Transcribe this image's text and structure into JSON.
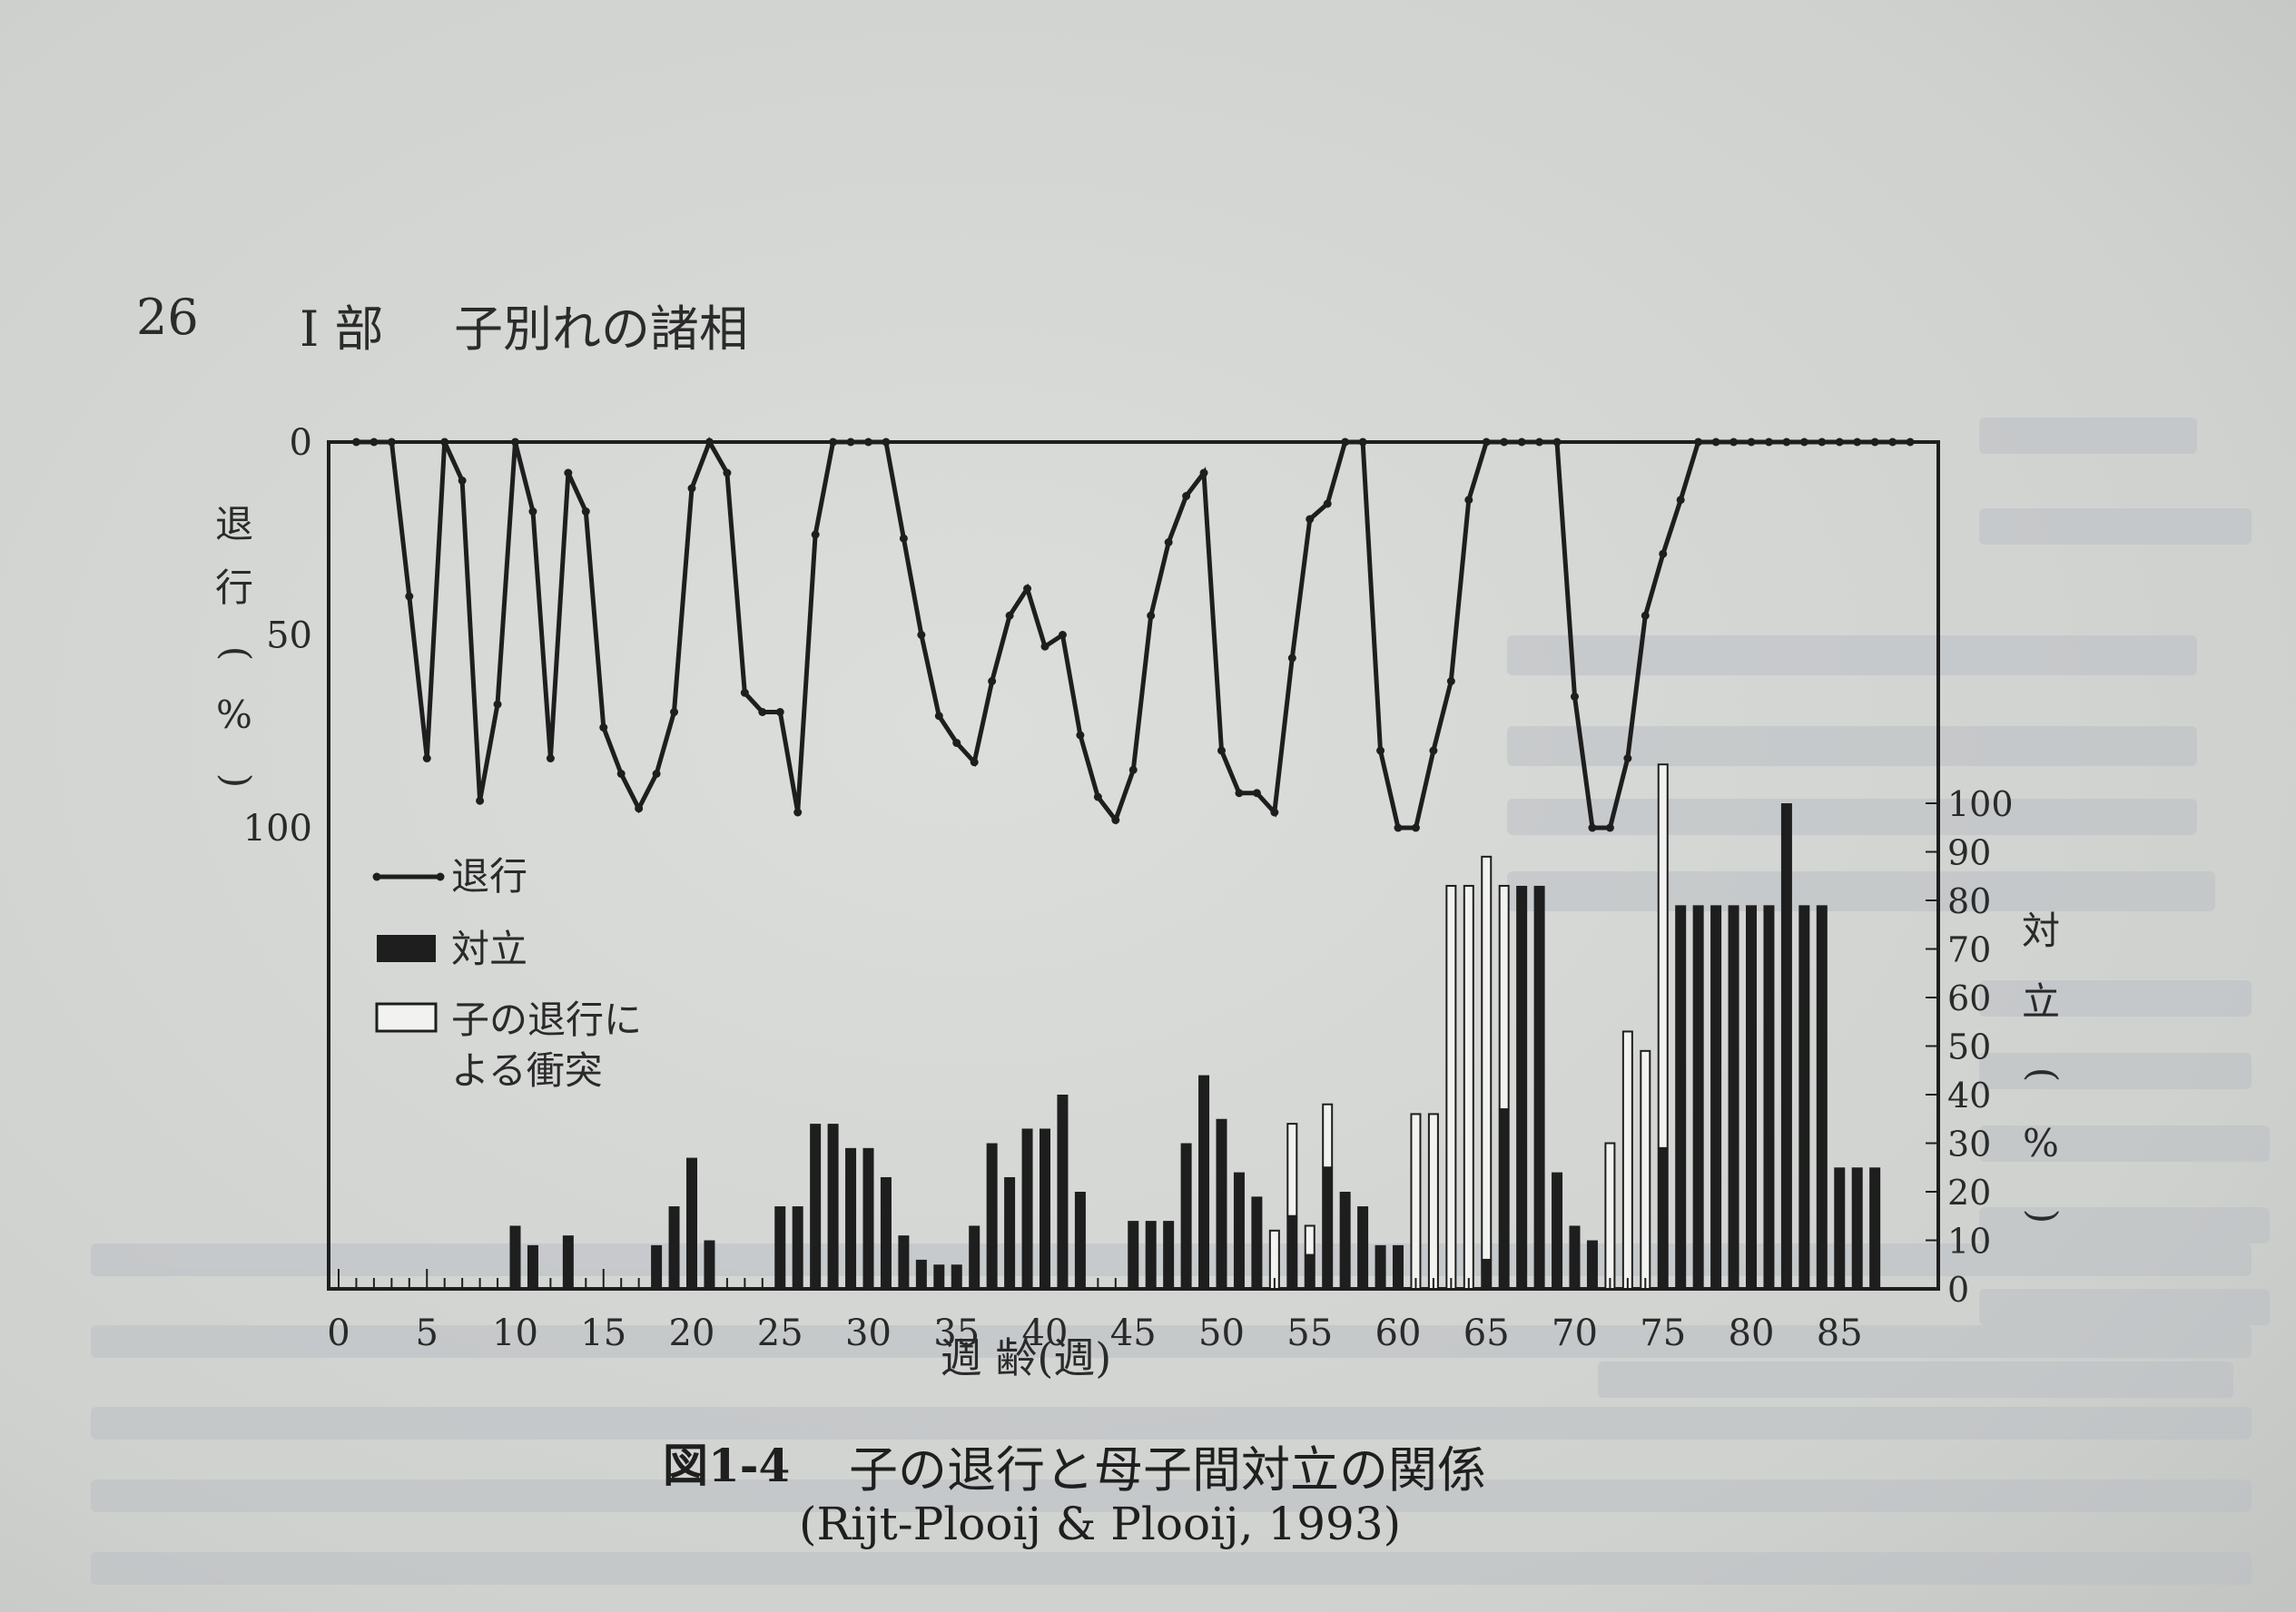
{
  "header": {
    "page_number": "26",
    "part": "I 部",
    "section_title": "子別れの諸相"
  },
  "caption": {
    "figure_label": "図1-4",
    "title": "子の退行と母子間対立の関係",
    "source": "(Rijt-Plooij & Plooij, 1993)"
  },
  "colors": {
    "paper": "#d3d5d3",
    "ink": "#1e1e1e",
    "open_bar": "#f2f2f0"
  },
  "chart_data": {
    "type": "line+stacked-bar",
    "xlabel": "週 齢(週)",
    "ylabel_left": "退 行(%)",
    "ylabel_right": "対 立(%)",
    "x_ticks": [
      0,
      5,
      10,
      15,
      20,
      25,
      30,
      35,
      40,
      45,
      50,
      55,
      60,
      65,
      70,
      75,
      80,
      85
    ],
    "left_axis": {
      "ticks": [
        0,
        50,
        100
      ],
      "ylim": [
        0,
        100
      ],
      "inverted": true
    },
    "right_axis": {
      "ticks": [
        0,
        10,
        20,
        30,
        40,
        50,
        60,
        70,
        80,
        90,
        100
      ],
      "ylim": [
        0,
        100
      ]
    },
    "legend": {
      "position": "center-left",
      "entries": [
        {
          "label": "退行",
          "marker": "line"
        },
        {
          "label": "対立",
          "marker": "filled-bar"
        },
        {
          "label": "子の退行に\nよる衝突",
          "marker": "open-bar"
        }
      ]
    },
    "regression_series": {
      "name": "退行",
      "x": [
        1,
        2,
        3,
        4,
        5,
        6,
        7,
        8,
        9,
        10,
        11,
        12,
        13,
        14,
        15,
        16,
        17,
        18,
        19,
        20,
        21,
        22,
        23,
        24,
        25,
        26,
        27,
        28,
        29,
        30,
        31,
        32,
        33,
        34,
        35,
        36,
        37,
        38,
        39,
        40,
        41,
        42,
        43,
        44,
        45,
        46,
        47,
        48,
        49,
        50,
        51,
        52,
        53,
        54,
        55,
        56,
        57,
        58,
        59,
        60,
        61,
        62,
        63,
        64,
        65,
        66,
        67,
        68,
        69,
        70,
        71,
        72,
        73,
        74,
        75,
        76,
        77,
        78,
        79,
        80,
        81,
        82,
        83,
        84,
        85,
        86,
        87,
        88,
        89
      ],
      "y": [
        0,
        0,
        0,
        40,
        82,
        0,
        10,
        93,
        68,
        0,
        18,
        82,
        8,
        18,
        74,
        86,
        95,
        86,
        70,
        12,
        0,
        8,
        65,
        70,
        70,
        96,
        24,
        0,
        0,
        0,
        0,
        25,
        50,
        71,
        78,
        83,
        62,
        45,
        38,
        53,
        50,
        76,
        92,
        98,
        85,
        45,
        26,
        14,
        8,
        80,
        91,
        91,
        96,
        56,
        20,
        16,
        0,
        0,
        80,
        100,
        100,
        80,
        62,
        15,
        0,
        0,
        0,
        0,
        0,
        66,
        100,
        100,
        82,
        45,
        29,
        15,
        0,
        0,
        0,
        0,
        0,
        0,
        0,
        0,
        0,
        0,
        0,
        0,
        0
      ]
    },
    "conflict_series": {
      "name": "対立",
      "x": [
        1,
        2,
        3,
        4,
        5,
        6,
        7,
        8,
        9,
        10,
        11,
        12,
        13,
        14,
        15,
        16,
        17,
        18,
        19,
        20,
        21,
        22,
        23,
        24,
        25,
        26,
        27,
        28,
        29,
        30,
        31,
        32,
        33,
        34,
        35,
        36,
        37,
        38,
        39,
        40,
        41,
        42,
        43,
        44,
        45,
        46,
        47,
        48,
        49,
        50,
        51,
        52,
        53,
        54,
        55,
        56,
        57,
        58,
        59,
        60,
        61,
        62,
        63,
        64,
        65,
        66,
        67,
        68,
        69,
        70,
        71,
        72,
        73,
        74,
        75,
        76,
        77,
        78,
        79,
        80,
        81,
        82,
        83,
        84,
        85,
        86,
        87
      ],
      "values": [
        0,
        0,
        0,
        0,
        0,
        0,
        0,
        0,
        0,
        13,
        9,
        0,
        11,
        0,
        0,
        0,
        0,
        9,
        17,
        27,
        10,
        0,
        0,
        0,
        17,
        17,
        34,
        34,
        29,
        29,
        23,
        11,
        6,
        5,
        5,
        13,
        30,
        23,
        33,
        33,
        40,
        20,
        0,
        0,
        14,
        14,
        14,
        30,
        44,
        35,
        24,
        19,
        0,
        15,
        7,
        25,
        20,
        17,
        9,
        9,
        0,
        0,
        0,
        0,
        6,
        37,
        83,
        83,
        24,
        13,
        10,
        0,
        0,
        0,
        29,
        79,
        79,
        79,
        79,
        79,
        79,
        100,
        79,
        79,
        25,
        25,
        25
      ]
    },
    "child_regression_conflict_series": {
      "name": "子の退行による衝突",
      "x": [
        53,
        54,
        55,
        56,
        61,
        62,
        63,
        64,
        65,
        66,
        72,
        73,
        74,
        75
      ],
      "values": [
        12,
        19,
        6,
        13,
        36,
        36,
        83,
        83,
        83,
        46,
        30,
        53,
        49,
        79
      ]
    }
  }
}
